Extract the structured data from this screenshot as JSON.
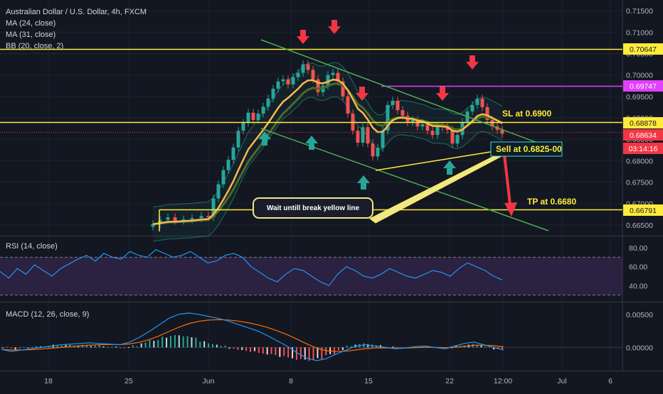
{
  "header": {
    "title": "Australian Dollar / U.S. Dollar, 4h, FXCM",
    "indicators": [
      "MA (24, close)",
      "MA (31, close)",
      "BB (20, close, 2)"
    ]
  },
  "rsi_label": "RSI (14, close)",
  "macd_label": "MACD (12, 26, close, 9)",
  "annotations": {
    "sl": "SL at 0.6900",
    "sell": "Sell at 0.6825-00",
    "tp": "TP at 0.6680",
    "note": "Wait untill break yellow line"
  },
  "price_tags": {
    "t70647": "0.70647",
    "t69747": "0.69747",
    "t68878": "0.68878",
    "t68634": "0.68634",
    "countdown": "03:14:16",
    "t66791": "0.66791"
  },
  "colors": {
    "background": "#131722",
    "yellow": "#ffeb3b",
    "magenta": "#e040fb",
    "red_tag": "#f23645",
    "green_line": "#4caf50",
    "rsi": "#2196f3",
    "macd": "#2196f3",
    "signal": "#ff6d00"
  },
  "chart_data": [
    {
      "type": "candlestick",
      "title": "Australian Dollar / U.S. Dollar, 4h, FXCM",
      "x_ticks": [
        "18",
        "25",
        "Jun",
        "8",
        "15",
        "22",
        "12:00",
        "Jul",
        "6"
      ],
      "y_ticks": [
        "0.71500",
        "0.71000",
        "0.70500",
        "0.70000",
        "0.69500",
        "0.69000",
        "0.68500",
        "0.68000",
        "0.67500",
        "0.67000",
        "0.66500"
      ],
      "ylim": [
        0.6625,
        0.7175
      ],
      "levels": [
        0.70647,
        0.69747,
        0.68878,
        0.66791
      ],
      "last_price": 0.68634
    },
    {
      "type": "line",
      "title": "RSI (14, close)",
      "y_ticks": [
        "80.00",
        "60.00",
        "40.00"
      ],
      "ylim": [
        23,
        92
      ],
      "bands": [
        70,
        30
      ]
    },
    {
      "type": "line",
      "title": "MACD (12, 26, close, 9)",
      "y_ticks": [
        "0.00500",
        "0.00000"
      ],
      "ylim": [
        -0.0035,
        0.0068
      ]
    }
  ]
}
